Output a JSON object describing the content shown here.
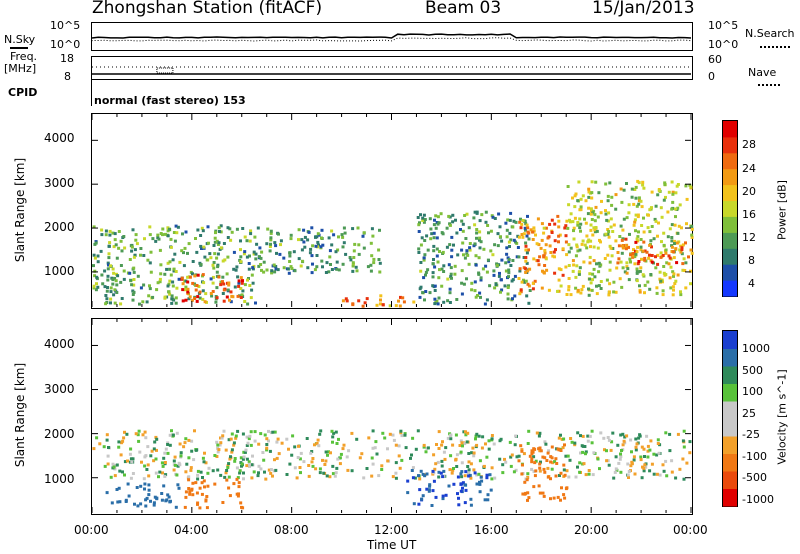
{
  "title": {
    "station": "Zhongshan Station (fitACF)",
    "beam": "Beam 03",
    "date": "15/Jan/2013"
  },
  "housekeeping": {
    "nsky_label": "N.Sky",
    "nsearch_label": "N.Search",
    "noise_left_ticks": [
      "10^5",
      "10^0"
    ],
    "noise_right_ticks": [
      "10^5",
      "10^0"
    ],
    "freq_label_line1": "Freq.",
    "freq_label_line2": "[MHz]",
    "freq_ticks": [
      "18",
      "8"
    ],
    "nave_label": "Nave",
    "nave_ticks": [
      "60",
      "0"
    ],
    "cpid_label": "CPID",
    "cpid_text": "normal (fast stereo) 153"
  },
  "chart_data": [
    {
      "type": "heatmap",
      "name": "power",
      "ylabel": "Slant Range [km]",
      "xlabel": "",
      "y_ticks": [
        "1000",
        "2000",
        "3000",
        "4000"
      ],
      "ylim": [
        200,
        4600
      ],
      "x_range_hours": [
        0,
        24
      ],
      "colorbar": {
        "label": "Power [dB]",
        "ticks": [
          "4",
          "8",
          "12",
          "16",
          "20",
          "24",
          "28"
        ],
        "range": [
          0,
          30
        ],
        "colors": [
          "#1438ff",
          "#1d4fa8",
          "#2f7a6c",
          "#4d9a55",
          "#7fbf3a",
          "#c8d82a",
          "#f2c21c",
          "#f29a14",
          "#ef6a10",
          "#e8300c",
          "#e00000"
        ]
      },
      "description_regions": [
        {
          "t_start": 0.0,
          "t_end": 6.5,
          "r_min": 300,
          "r_max": 2100,
          "dominant_db": 10
        },
        {
          "t_start": 3.5,
          "t_end": 6.0,
          "r_min": 350,
          "r_max": 1000,
          "dominant_db": 26
        },
        {
          "t_start": 6.5,
          "t_end": 11.5,
          "r_min": 1000,
          "r_max": 2050,
          "dominant_db": 8
        },
        {
          "t_start": 10.0,
          "t_end": 13.0,
          "r_min": 250,
          "r_max": 500,
          "dominant_db": 22
        },
        {
          "t_start": 13.0,
          "t_end": 17.5,
          "r_min": 300,
          "r_max": 2400,
          "dominant_db": 8
        },
        {
          "t_start": 17.0,
          "t_end": 19.0,
          "r_min": 500,
          "r_max": 2300,
          "dominant_db": 22
        },
        {
          "t_start": 19.0,
          "t_end": 24.0,
          "r_min": 500,
          "r_max": 3100,
          "dominant_db": 14
        },
        {
          "t_start": 21.0,
          "t_end": 24.0,
          "r_min": 1200,
          "r_max": 1800,
          "dominant_db": 24
        }
      ]
    },
    {
      "type": "heatmap",
      "name": "velocity",
      "ylabel": "Slant Range [km]",
      "xlabel": "Time UT",
      "y_ticks": [
        "1000",
        "2000",
        "3000",
        "4000"
      ],
      "ylim": [
        200,
        4600
      ],
      "x_ticks": [
        "00:00",
        "04:00",
        "08:00",
        "12:00",
        "16:00",
        "20:00",
        "00:00"
      ],
      "x_range_hours": [
        0,
        24
      ],
      "colorbar": {
        "label": "Velocity [m s^-1]",
        "ticks": [
          "1000",
          "500",
          "100",
          "25",
          "-25",
          "-100",
          "-500",
          "-1000"
        ],
        "colors": [
          "#1a3fd0",
          "#2a6ea8",
          "#2e8a5a",
          "#58c23a",
          "#c8c8c8",
          "#c8c8c8",
          "#f2a02a",
          "#f07814",
          "#ea4a0c",
          "#e00000"
        ]
      },
      "description_regions": [
        {
          "t_start": 0.0,
          "t_end": 24.0,
          "r_min": 1000,
          "r_max": 2100,
          "dominant_ms": 0
        },
        {
          "t_start": 3.5,
          "t_end": 6.0,
          "r_min": 350,
          "r_max": 1000,
          "dominant_ms": -300
        },
        {
          "t_start": 0.5,
          "t_end": 3.5,
          "r_min": 350,
          "r_max": 900,
          "dominant_ms": 200
        },
        {
          "t_start": 12.5,
          "t_end": 16.0,
          "r_min": 400,
          "r_max": 1200,
          "dominant_ms": 500
        },
        {
          "t_start": 17.0,
          "t_end": 19.0,
          "r_min": 500,
          "r_max": 1800,
          "dominant_ms": -300
        }
      ]
    }
  ]
}
